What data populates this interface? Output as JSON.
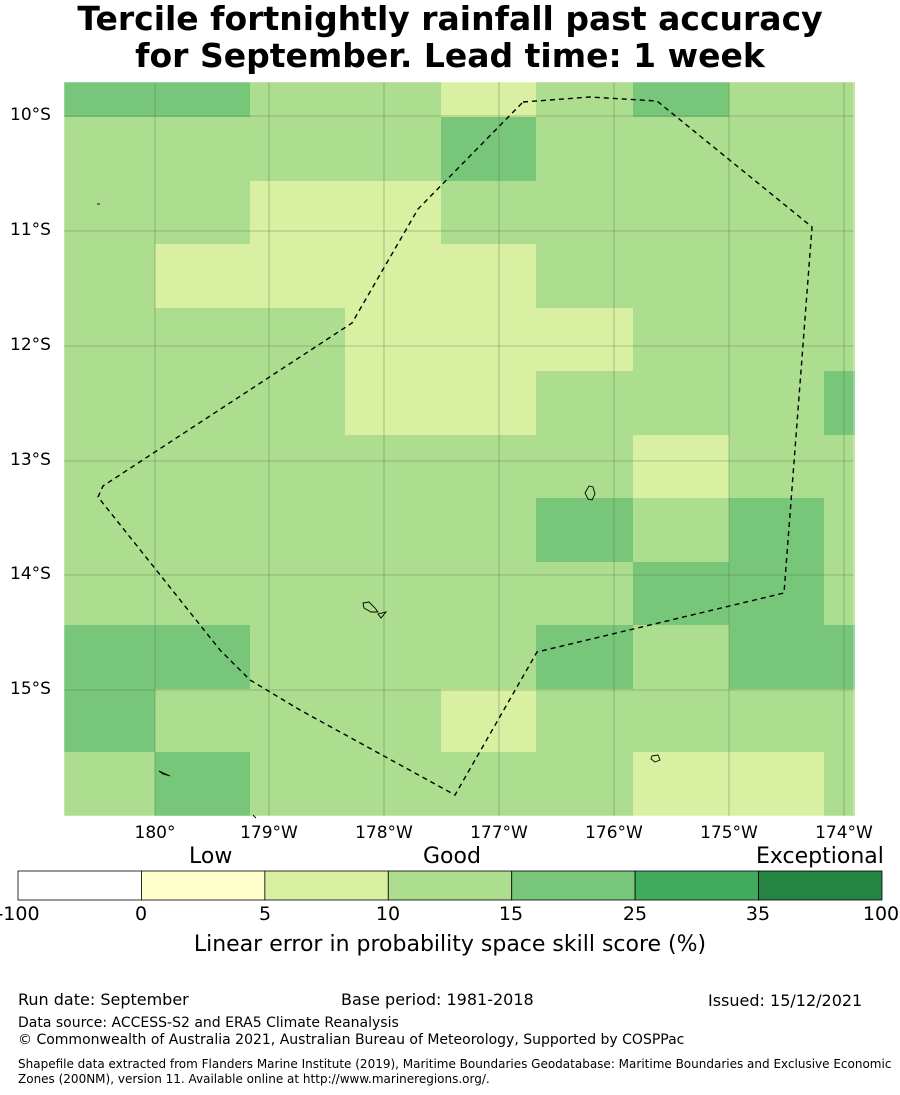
{
  "title": {
    "line1": "Tercile fortnightly rainfall past accuracy",
    "line2": "for September. Lead time: 1 week"
  },
  "map": {
    "lat_labels": [
      "10°S",
      "11°S",
      "12°S",
      "13°S",
      "14°S",
      "15°S"
    ],
    "lon_labels": [
      "180°",
      "179°W",
      "178°W",
      "177°W",
      "176°W",
      "175°W",
      "174°W"
    ],
    "colors": {
      "c_0_5": "#ffffcc",
      "c_5_10": "#d9f0a3",
      "c_10_15": "#addd8e",
      "c_15_25": "#78c679",
      "c_25_35": "#41ab5d",
      "c_35_100": "#238443"
    },
    "grid_cells": [
      [
        "c_15_25",
        "c_15_25",
        "c_10_15",
        "c_10_15",
        "c_5_10",
        "c_10_15",
        "c_15_25",
        "c_10_15",
        "c_10_15"
      ],
      [
        "c_10_15",
        "c_10_15",
        "c_10_15",
        "c_10_15",
        "c_15_25",
        "c_10_15",
        "c_10_15",
        "c_10_15",
        "c_10_15"
      ],
      [
        "c_10_15",
        "c_10_15",
        "c_5_10",
        "c_5_10",
        "c_10_15",
        "c_10_15",
        "c_10_15",
        "c_10_15",
        "c_10_15"
      ],
      [
        "c_10_15",
        "c_5_10",
        "c_5_10",
        "c_5_10",
        "c_5_10",
        "c_10_15",
        "c_10_15",
        "c_10_15",
        "c_10_15"
      ],
      [
        "c_10_15",
        "c_10_15",
        "c_10_15",
        "c_5_10",
        "c_5_10",
        "c_5_10",
        "c_10_15",
        "c_10_15",
        "c_10_15"
      ],
      [
        "c_10_15",
        "c_10_15",
        "c_10_15",
        "c_5_10",
        "c_5_10",
        "c_10_15",
        "c_10_15",
        "c_10_15",
        "c_15_25"
      ],
      [
        "c_10_15",
        "c_10_15",
        "c_10_15",
        "c_10_15",
        "c_10_15",
        "c_10_15",
        "c_5_10",
        "c_10_15",
        "c_10_15"
      ],
      [
        "c_10_15",
        "c_10_15",
        "c_10_15",
        "c_10_15",
        "c_10_15",
        "c_15_25",
        "c_10_15",
        "c_15_25",
        "c_10_15"
      ],
      [
        "c_10_15",
        "c_10_15",
        "c_10_15",
        "c_10_15",
        "c_10_15",
        "c_10_15",
        "c_15_25",
        "c_15_25",
        "c_10_15"
      ],
      [
        "c_15_25",
        "c_15_25",
        "c_10_15",
        "c_10_15",
        "c_10_15",
        "c_15_25",
        "c_10_15",
        "c_15_25",
        "c_15_25"
      ],
      [
        "c_15_25",
        "c_10_15",
        "c_10_15",
        "c_10_15",
        "c_5_10",
        "c_10_15",
        "c_10_15",
        "c_10_15",
        "c_10_15"
      ],
      [
        "c_10_15",
        "c_15_25",
        "c_10_15",
        "c_10_15",
        "c_10_15",
        "c_10_15",
        "c_5_10",
        "c_5_10",
        "c_10_15"
      ]
    ]
  },
  "colorbar": {
    "categories": [
      "Low",
      "Good",
      "Exceptional"
    ],
    "ticks": [
      "-100",
      "0",
      "5",
      "10",
      "15",
      "25",
      "35",
      "100"
    ],
    "bins": [
      {
        "from": "-100",
        "to": "0",
        "color": "#ffffff"
      },
      {
        "from": "0",
        "to": "5",
        "color": "#ffffcc"
      },
      {
        "from": "5",
        "to": "10",
        "color": "#d9f0a3"
      },
      {
        "from": "10",
        "to": "15",
        "color": "#addd8e"
      },
      {
        "from": "15",
        "to": "25",
        "color": "#78c679"
      },
      {
        "from": "25",
        "to": "35",
        "color": "#41ab5d"
      },
      {
        "from": "35",
        "to": "100",
        "color": "#238443"
      }
    ],
    "title": "Linear error in probability space skill score (%)"
  },
  "footer": {
    "run_date": "Run date: September",
    "base_period": "Base period: 1981-2018",
    "issued": "Issued: 15/12/2021",
    "data_source": "Data source: ACCESS-S2 and ERA5 Climate Reanalysis",
    "copyright": "© Commonwealth of Australia 2021, Australian Bureau of Meteorology, Supported by COSPPac",
    "shapefile": "Shapefile data extracted from Flanders Marine Institute (2019), Maritime Boundaries Geodatabase: Maritime Boundaries and Exclusive Economic Zones (200NM), version 11. Available online at http://www.marineregions.org/."
  }
}
